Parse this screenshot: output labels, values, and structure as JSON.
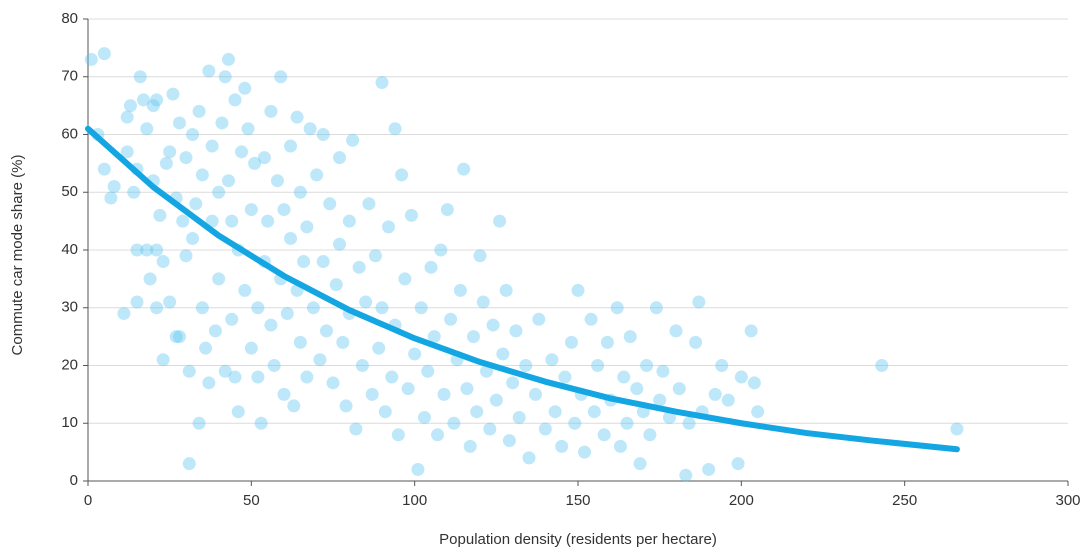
{
  "chart_data": {
    "type": "scatter",
    "xlabel": "Population density (residents per hectare)",
    "ylabel": "Commute car mode share (%)",
    "xlim": [
      0,
      300
    ],
    "xticks": [
      0,
      50,
      100,
      150,
      200,
      250,
      300
    ],
    "ylim": [
      0,
      80
    ],
    "yticks": [
      0,
      10,
      20,
      30,
      40,
      50,
      60,
      70,
      80
    ],
    "grid": true,
    "series": [
      {
        "type": "scatter",
        "color": "#5cc6f0",
        "x": [
          1,
          5,
          3,
          5,
          7,
          8,
          11,
          12,
          12,
          13,
          14,
          15,
          15,
          15,
          16,
          17,
          18,
          18,
          19,
          20,
          20,
          21,
          21,
          21,
          22,
          23,
          23,
          24,
          25,
          25,
          26,
          27,
          27,
          28,
          28,
          29,
          30,
          30,
          31,
          31,
          32,
          32,
          33,
          34,
          34,
          35,
          35,
          36,
          37,
          37,
          38,
          38,
          39,
          40,
          40,
          41,
          42,
          42,
          43,
          43,
          44,
          44,
          45,
          45,
          46,
          46,
          47,
          48,
          48,
          49,
          50,
          50,
          51,
          52,
          52,
          53,
          54,
          54,
          55,
          56,
          56,
          57,
          58,
          59,
          59,
          60,
          60,
          61,
          62,
          62,
          63,
          64,
          64,
          65,
          65,
          66,
          67,
          67,
          68,
          69,
          70,
          71,
          72,
          72,
          73,
          74,
          75,
          76,
          77,
          77,
          78,
          79,
          80,
          80,
          81,
          82,
          83,
          84,
          85,
          86,
          87,
          88,
          89,
          90,
          90,
          91,
          92,
          93,
          94,
          94,
          95,
          96,
          97,
          98,
          99,
          100,
          101,
          102,
          103,
          104,
          105,
          106,
          107,
          108,
          109,
          110,
          111,
          112,
          113,
          114,
          115,
          116,
          117,
          118,
          119,
          120,
          121,
          122,
          123,
          124,
          125,
          126,
          127,
          128,
          129,
          130,
          131,
          132,
          134,
          135,
          137,
          138,
          140,
          142,
          143,
          145,
          146,
          148,
          149,
          150,
          151,
          152,
          154,
          155,
          156,
          158,
          159,
          160,
          162,
          163,
          164,
          165,
          166,
          168,
          169,
          170,
          171,
          172,
          174,
          175,
          176,
          178,
          180,
          181,
          183,
          184,
          186,
          187,
          188,
          190,
          192,
          194,
          196,
          199,
          200,
          203,
          204,
          205,
          243,
          266
        ],
        "values": [
          73,
          74,
          60,
          54,
          49,
          51,
          29,
          57,
          63,
          65,
          50,
          40,
          31,
          54,
          70,
          66,
          40,
          61,
          35,
          52,
          65,
          40,
          30,
          66,
          46,
          38,
          21,
          55,
          57,
          31,
          67,
          25,
          49,
          62,
          25,
          45,
          56,
          39,
          19,
          3,
          60,
          42,
          48,
          10,
          64,
          53,
          30,
          23,
          71,
          17,
          45,
          58,
          26,
          50,
          35,
          62,
          19,
          70,
          73,
          52,
          45,
          28,
          66,
          18,
          12,
          40,
          57,
          68,
          33,
          61,
          47,
          23,
          55,
          30,
          18,
          10,
          56,
          38,
          45,
          64,
          27,
          20,
          52,
          35,
          70,
          47,
          15,
          29,
          58,
          42,
          13,
          63,
          33,
          50,
          24,
          38,
          18,
          44,
          61,
          30,
          53,
          21,
          38,
          60,
          26,
          48,
          17,
          34,
          56,
          41,
          24,
          13,
          29,
          45,
          59,
          9,
          37,
          20,
          31,
          48,
          15,
          39,
          23,
          69,
          30,
          12,
          44,
          18,
          61,
          27,
          8,
          53,
          35,
          16,
          46,
          22,
          2,
          30,
          11,
          19,
          37,
          25,
          8,
          40,
          15,
          47,
          28,
          10,
          21,
          33,
          54,
          16,
          6,
          25,
          12,
          39,
          31,
          19,
          9,
          27,
          14,
          45,
          22,
          33,
          7,
          17,
          26,
          11,
          20,
          4,
          15,
          28,
          9,
          21,
          12,
          6,
          18,
          24,
          10,
          33,
          15,
          5,
          28,
          12,
          20,
          8,
          24,
          14,
          30,
          6,
          18,
          10,
          25,
          16,
          3,
          12,
          20,
          8,
          30,
          14,
          19,
          11,
          26,
          16,
          1,
          10,
          24,
          31,
          12,
          2,
          15,
          20,
          14,
          3,
          18,
          26,
          17,
          12,
          20,
          9
        ]
      },
      {
        "type": "line",
        "color": "#13a6e2",
        "x": [
          0,
          20,
          40,
          60,
          80,
          100,
          120,
          140,
          160,
          180,
          200,
          220,
          240,
          266
        ],
        "values": [
          61,
          50.9,
          42.5,
          35.5,
          29.6,
          24.7,
          20.6,
          17.2,
          14.3,
          12.0,
          10.0,
          8.3,
          7.0,
          5.5
        ]
      }
    ]
  }
}
